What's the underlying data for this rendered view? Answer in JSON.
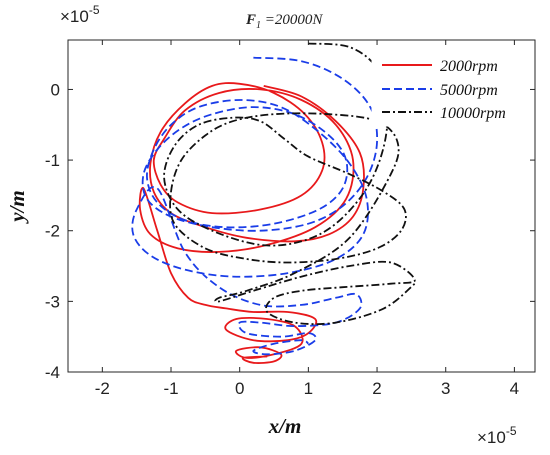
{
  "chart_data": {
    "type": "line",
    "title": "F1 =20000N",
    "title_main": "F",
    "title_sub": "1",
    "title_rest": " =20000N",
    "xlabel": "x/m",
    "ylabel": "y/m",
    "x_exponent_base": "×10",
    "x_exponent_power": "-5",
    "y_exponent_base": "×10",
    "y_exponent_power": "-5",
    "xlim": [
      -2.5,
      4.3
    ],
    "ylim": [
      -4,
      0.7
    ],
    "x_ticks": [
      -2,
      -1,
      0,
      1,
      2,
      3,
      4
    ],
    "x_tick_labels": [
      "-2",
      "-1",
      "0",
      "1",
      "2",
      "3",
      "4"
    ],
    "y_ticks": [
      0,
      -1,
      -2,
      -3,
      -4
    ],
    "y_tick_labels": [
      "0",
      "-1",
      "-2",
      "-3",
      "-4"
    ],
    "grid": false,
    "legend_position": "top-right",
    "series": [
      {
        "name": "2000rpm",
        "color": "#e8191b",
        "dash": "solid",
        "x": [
          0.35,
          0.9,
          1.4,
          1.75,
          1.8,
          1.65,
          1.3,
          0.8,
          0.1,
          -0.5,
          -1.0,
          -1.25,
          -1.3,
          -1.15,
          -0.8,
          -0.4,
          0.0,
          0.5,
          0.95,
          1.2,
          1.2,
          0.9,
          0.3,
          -0.4,
          -0.9,
          -1.15,
          -1.25,
          -1.1,
          -0.8,
          -0.3,
          0.3,
          0.9,
          1.4,
          1.65,
          1.55,
          1.1,
          0.4,
          -0.3,
          -0.9,
          -1.3,
          -1.45,
          -1.4,
          -1.2,
          -1.0,
          -0.75,
          -0.5,
          -0.2,
          0.2,
          0.7,
          1.1,
          1.0,
          0.7,
          0.2,
          -0.2,
          -0.05,
          0.4,
          0.8,
          0.9,
          0.5,
          0.1,
          -0.05,
          0.3,
          0.6,
          0.5,
          0.2,
          0.05,
          0.4
        ],
        "y": [
          0.05,
          -0.1,
          -0.45,
          -0.9,
          -1.4,
          -1.8,
          -2.05,
          -2.15,
          -2.1,
          -1.95,
          -1.75,
          -1.45,
          -1.05,
          -0.6,
          -0.2,
          0.05,
          0.08,
          -0.05,
          -0.35,
          -0.75,
          -1.15,
          -1.5,
          -1.7,
          -1.75,
          -1.6,
          -1.35,
          -1.0,
          -0.7,
          -0.3,
          -0.05,
          0.0,
          -0.15,
          -0.5,
          -1.0,
          -1.55,
          -1.95,
          -2.2,
          -2.3,
          -2.25,
          -2.05,
          -1.7,
          -1.4,
          -2.0,
          -2.6,
          -2.95,
          -3.05,
          -3.1,
          -3.15,
          -3.15,
          -3.25,
          -3.45,
          -3.55,
          -3.55,
          -3.4,
          -3.25,
          -3.25,
          -3.35,
          -3.6,
          -3.75,
          -3.8,
          -3.7,
          -3.65,
          -3.75,
          -3.85,
          -3.87,
          -3.8,
          -3.78
        ]
      },
      {
        "name": "5000rpm",
        "color": "#1a3de8",
        "dash": "dashed",
        "x": [
          0.2,
          0.9,
          1.5,
          1.9,
          2.0,
          1.85,
          1.5,
          1.0,
          0.3,
          -0.4,
          -1.0,
          -1.35,
          -1.4,
          -1.2,
          -0.85,
          -0.4,
          0.2,
          0.8,
          1.3,
          1.55,
          1.5,
          1.15,
          0.5,
          -0.2,
          -0.8,
          -1.2,
          -1.35,
          -1.25,
          -1.0,
          -0.6,
          0.0,
          0.6,
          1.15,
          1.6,
          1.85,
          1.8,
          1.4,
          0.7,
          -0.1,
          -0.8,
          -1.3,
          -1.55,
          -1.5,
          -1.2,
          -0.8,
          -0.3,
          0.3,
          0.9,
          1.4,
          1.7,
          1.75,
          1.4,
          0.8,
          0.3,
          0.0,
          0.1,
          0.6,
          1.0,
          1.1,
          0.8,
          0.4,
          0.2,
          0.5,
          0.9,
          1.0
        ],
        "y": [
          0.45,
          0.4,
          0.15,
          -0.25,
          -0.75,
          -1.25,
          -1.65,
          -1.9,
          -2.0,
          -1.95,
          -1.8,
          -1.55,
          -1.2,
          -0.85,
          -0.55,
          -0.35,
          -0.25,
          -0.35,
          -0.65,
          -1.0,
          -1.4,
          -1.7,
          -1.9,
          -1.95,
          -1.85,
          -1.6,
          -1.25,
          -0.85,
          -0.5,
          -0.25,
          -0.15,
          -0.25,
          -0.6,
          -1.05,
          -1.55,
          -2.05,
          -2.4,
          -2.6,
          -2.65,
          -2.55,
          -2.35,
          -2.05,
          -1.7,
          -1.4,
          -2.3,
          -2.8,
          -3.05,
          -3.05,
          -2.95,
          -2.9,
          -3.1,
          -3.3,
          -3.35,
          -3.3,
          -3.3,
          -3.45,
          -3.5,
          -3.45,
          -3.55,
          -3.7,
          -3.75,
          -3.7,
          -3.6,
          -3.55,
          -3.6
        ]
      },
      {
        "name": "10000rpm",
        "color": "#111111",
        "dash": "dashdot",
        "x": [
          1.0,
          1.6,
          2.0,
          2.15,
          2.1,
          1.85,
          1.4,
          0.9,
          0.3,
          -0.4,
          -0.9,
          -1.1,
          -0.95,
          -0.6,
          -0.1,
          0.3,
          0.65,
          1.0,
          1.6,
          2.1,
          2.4,
          2.35,
          2.0,
          1.4,
          0.7,
          0.1,
          -0.5,
          -0.95,
          -1.0,
          -0.85,
          -0.5,
          -0.1,
          0.5,
          1.3,
          2.0,
          2.3,
          2.2,
          1.6,
          0.8,
          0.1,
          -0.3,
          -0.3,
          0.2,
          0.9,
          1.6,
          2.2,
          2.55,
          2.2,
          1.5,
          0.9,
          0.5,
          0.4,
          0.8,
          1.4,
          2.1,
          2.55
        ],
        "y": [
          0.65,
          0.6,
          0.3,
          -0.2,
          -0.8,
          -1.4,
          -1.9,
          -2.15,
          -2.2,
          -2.0,
          -1.7,
          -1.25,
          -0.8,
          -0.5,
          -0.4,
          -0.45,
          -0.7,
          -0.95,
          -1.2,
          -1.45,
          -1.7,
          -2.0,
          -2.25,
          -2.4,
          -2.45,
          -2.4,
          -2.25,
          -1.9,
          -1.45,
          -1.0,
          -0.65,
          -0.45,
          -0.35,
          -0.35,
          -0.45,
          -0.75,
          -1.2,
          -2.1,
          -2.6,
          -2.85,
          -2.95,
          -3.0,
          -2.85,
          -2.65,
          -2.5,
          -2.45,
          -2.7,
          -2.75,
          -2.8,
          -2.85,
          -2.95,
          -3.15,
          -3.3,
          -3.3,
          -3.1,
          -2.75
        ]
      }
    ]
  }
}
